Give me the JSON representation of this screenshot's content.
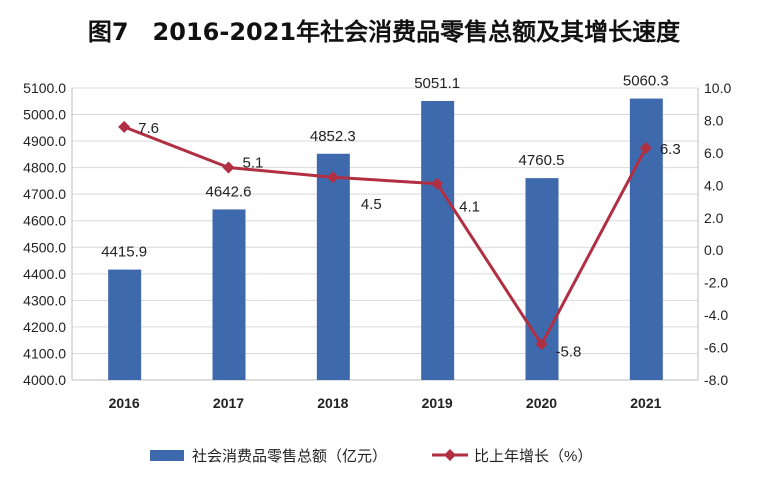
{
  "chart_data": {
    "type": "bar",
    "title": "图7　2016-2021年社会消费品零售总额及其增长速度",
    "categories": [
      "2016",
      "2017",
      "2018",
      "2019",
      "2020",
      "2021"
    ],
    "series": [
      {
        "name": "社会消费品零售总额（亿元）",
        "type": "bar",
        "axis": "left",
        "color": "#3e6aad",
        "values": [
          4415.9,
          4642.6,
          4852.3,
          5051.1,
          4760.5,
          5060.3
        ],
        "labels": [
          "4415.9",
          "4642.6",
          "4852.3",
          "5051.1",
          "4760.5",
          "5060.3"
        ]
      },
      {
        "name": "比上年增长（%）",
        "type": "line",
        "axis": "right",
        "color": "#b02f42",
        "values": [
          7.6,
          5.1,
          4.5,
          4.1,
          -5.8,
          6.3
        ],
        "labels": [
          "7.6",
          "5.1",
          "4.5",
          "4.1",
          "-5.8",
          "6.3"
        ]
      }
    ],
    "left_axis": {
      "ylim": [
        4000,
        5100
      ],
      "ticks": [
        "4000.0",
        "4100.0",
        "4200.0",
        "4300.0",
        "4400.0",
        "4500.0",
        "4600.0",
        "4700.0",
        "4800.0",
        "4900.0",
        "5000.0",
        "5100.0"
      ]
    },
    "right_axis": {
      "ylim": [
        -8,
        10
      ],
      "ticks": [
        "-8.0",
        "-6.0",
        "-4.0",
        "-2.0",
        "0.0",
        "2.0",
        "4.0",
        "6.0",
        "8.0",
        "10.0"
      ]
    },
    "grid": true,
    "legend": "bottom"
  }
}
